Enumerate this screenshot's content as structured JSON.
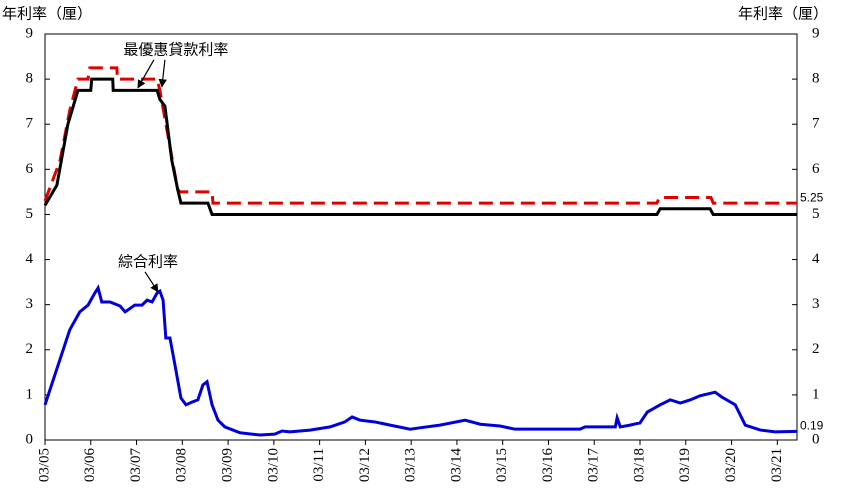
{
  "chart_data": {
    "type": "line",
    "y_label": "年利率（厘）",
    "y2_label": "年利率（厘）",
    "ylim": [
      0,
      9
    ],
    "yticks": [
      0,
      1,
      2,
      3,
      4,
      5,
      6,
      7,
      8,
      9
    ],
    "y2lim": [
      0,
      9
    ],
    "y2ticks": [
      0,
      1,
      2,
      3,
      4,
      5,
      6,
      7,
      8,
      9
    ],
    "xlim": [
      2005.17,
      2021.6
    ],
    "xticks": [
      {
        "value": 2005.17,
        "label": "03/05"
      },
      {
        "value": 2006.17,
        "label": "03/06"
      },
      {
        "value": 2007.17,
        "label": "03/07"
      },
      {
        "value": 2008.17,
        "label": "03/08"
      },
      {
        "value": 2009.17,
        "label": "03/09"
      },
      {
        "value": 2010.17,
        "label": "03/10"
      },
      {
        "value": 2011.17,
        "label": "03/11"
      },
      {
        "value": 2012.17,
        "label": "03/12"
      },
      {
        "value": 2013.17,
        "label": "03/13"
      },
      {
        "value": 2014.17,
        "label": "03/14"
      },
      {
        "value": 2015.17,
        "label": "03/15"
      },
      {
        "value": 2016.17,
        "label": "03/16"
      },
      {
        "value": 2017.17,
        "label": "03/17"
      },
      {
        "value": 2018.17,
        "label": "03/18"
      },
      {
        "value": 2019.17,
        "label": "03/19"
      },
      {
        "value": 2020.17,
        "label": "03/20"
      },
      {
        "value": 2021.17,
        "label": "03/21"
      }
    ],
    "series": [
      {
        "color": "#e00000",
        "dashed": true,
        "end_label": "5.25",
        "x": [
          2005.17,
          2005.5,
          2005.71,
          2005.89,
          2006.11,
          2006.15,
          2006.74,
          2006.75,
          2007.62,
          2007.68,
          2007.9,
          2008.07,
          2008.12,
          2008.82,
          2008.84,
          2018.54,
          2018.59,
          2019.72,
          2019.77,
          2021.6
        ],
        "values": [
          5.3,
          6.2,
          7.3,
          8.0,
          8.0,
          8.25,
          8.25,
          8.0,
          8.0,
          7.75,
          6.5,
          5.55,
          5.5,
          5.5,
          5.25,
          5.25,
          5.375,
          5.375,
          5.25,
          5.25
        ]
      },
      {
        "color": "#000000",
        "dashed": false,
        "x": [
          2005.17,
          2005.43,
          2005.67,
          2005.89,
          2006.17,
          2006.19,
          2006.65,
          2006.66,
          2007.62,
          2007.68,
          2007.79,
          2007.94,
          2008.07,
          2008.14,
          2008.73,
          2008.82,
          2018.54,
          2018.61,
          2019.7,
          2019.77,
          2021.6
        ],
        "values": [
          5.2,
          5.65,
          7.0,
          7.75,
          7.75,
          8.0,
          8.0,
          7.75,
          7.75,
          7.55,
          7.4,
          6.2,
          5.55,
          5.25,
          5.25,
          5.0,
          5.0,
          5.125,
          5.125,
          5.0,
          5.0
        ]
      },
      {
        "color": "#0000dd",
        "dashed": false,
        "end_label": "0.19",
        "x": [
          2005.17,
          2005.71,
          2005.93,
          2006.11,
          2006.26,
          2006.33,
          2006.41,
          2006.59,
          2006.81,
          2006.92,
          2007.13,
          2007.29,
          2007.4,
          2007.51,
          2007.62,
          2007.68,
          2007.75,
          2007.81,
          2007.9,
          2008.01,
          2008.14,
          2008.25,
          2008.38,
          2008.51,
          2008.62,
          2008.71,
          2008.82,
          2008.95,
          2009.1,
          2009.43,
          2009.87,
          2010.19,
          2010.35,
          2010.52,
          2010.96,
          2011.4,
          2011.72,
          2011.88,
          2012.05,
          2012.38,
          2012.71,
          2013.15,
          2013.36,
          2013.8,
          2014.35,
          2014.68,
          2015.11,
          2015.44,
          2016.86,
          2016.97,
          2017.63,
          2017.67,
          2017.74,
          2017.95,
          2018.17,
          2018.33,
          2018.61,
          2018.83,
          2019.05,
          2019.27,
          2019.48,
          2019.81,
          2019.96,
          2020.25,
          2020.47,
          2020.8,
          2021.12,
          2021.6
        ],
        "values": [
          0.78,
          2.44,
          2.84,
          2.99,
          3.26,
          3.37,
          3.06,
          3.06,
          2.97,
          2.84,
          2.99,
          2.99,
          3.1,
          3.06,
          3.26,
          3.3,
          3.1,
          2.26,
          2.26,
          1.66,
          0.93,
          0.78,
          0.84,
          0.89,
          1.22,
          1.29,
          0.78,
          0.44,
          0.29,
          0.16,
          0.11,
          0.13,
          0.2,
          0.18,
          0.22,
          0.29,
          0.4,
          0.51,
          0.44,
          0.4,
          0.33,
          0.24,
          0.27,
          0.33,
          0.44,
          0.35,
          0.31,
          0.24,
          0.24,
          0.29,
          0.29,
          0.49,
          0.29,
          0.33,
          0.38,
          0.62,
          0.78,
          0.89,
          0.82,
          0.89,
          0.98,
          1.06,
          0.95,
          0.78,
          0.33,
          0.22,
          0.18,
          0.19
        ]
      }
    ],
    "annotations": [
      {
        "text": "最優惠貸款利率",
        "x": 2008.03,
        "y": 8.65
      },
      {
        "text": "綜合利率",
        "x": 2007.42,
        "y": 3.95
      }
    ]
  }
}
